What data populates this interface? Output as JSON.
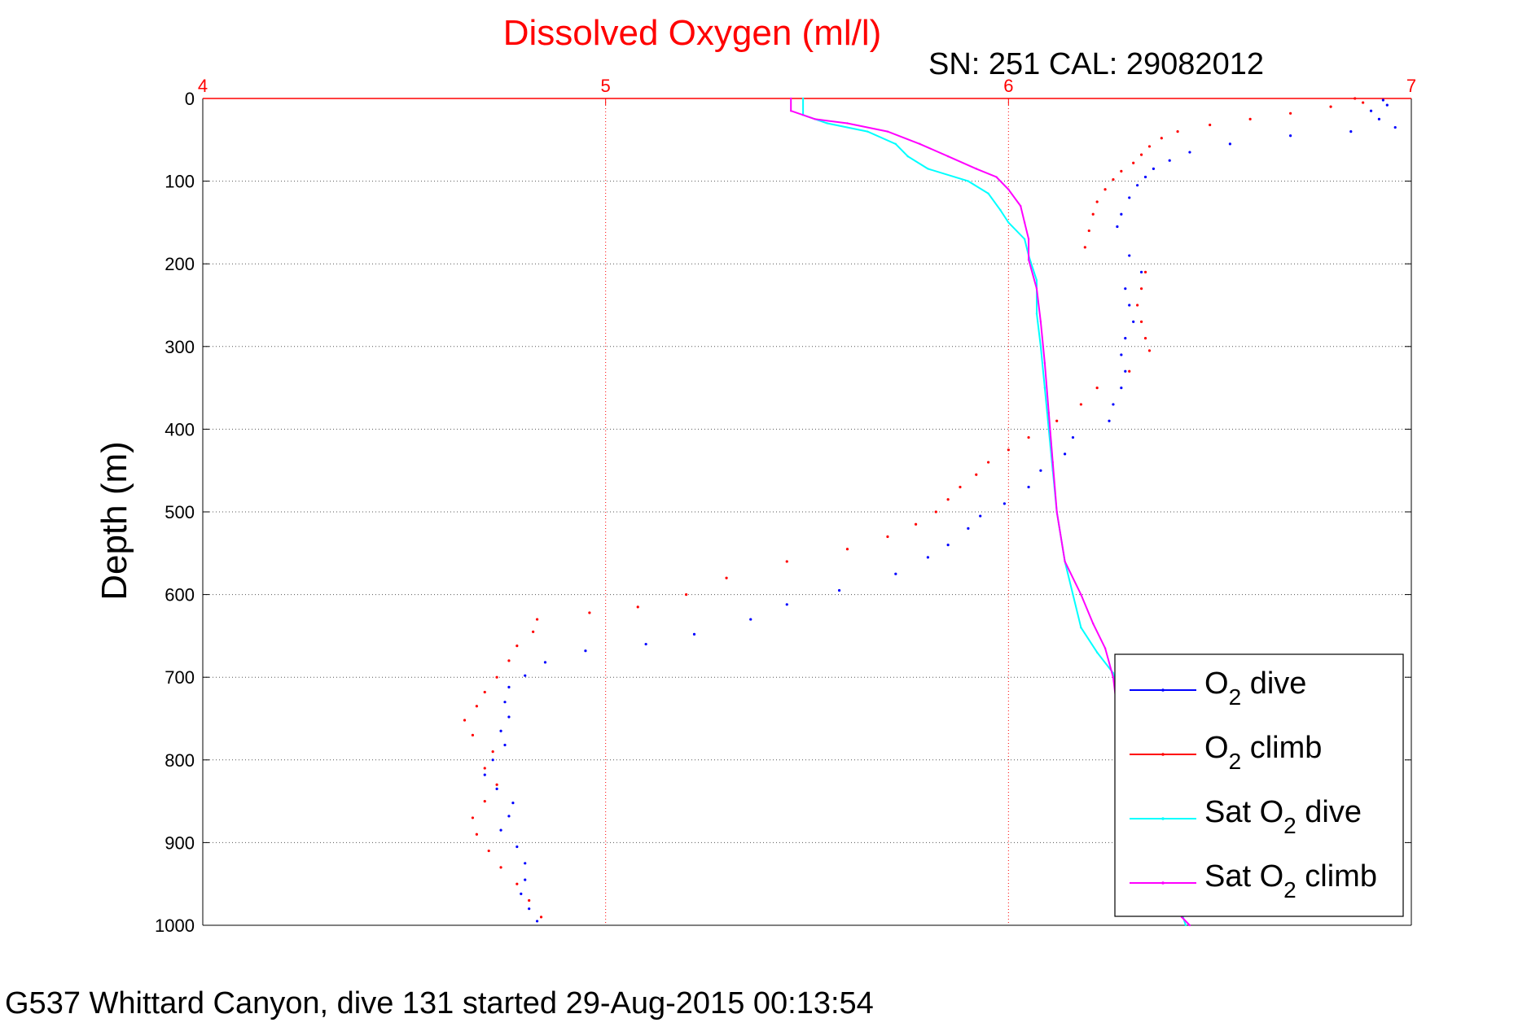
{
  "chart_data": {
    "type": "scatter",
    "title": "Dissolved Oxygen (ml/l)",
    "subtitle": "SN: 251  CAL: 29082012",
    "ylabel": "Depth (m)",
    "xlabel": "",
    "footer": "G537 Whittard Canyon, dive 131 started 29-Aug-2015 00:13:54",
    "xlim": [
      4,
      7
    ],
    "ylim": [
      0,
      1000
    ],
    "y_reversed": true,
    "x_axis_position": "top",
    "xticks": [
      "4",
      "5",
      "6",
      "7"
    ],
    "yticks": [
      "0",
      "100",
      "200",
      "300",
      "400",
      "500",
      "600",
      "700",
      "800",
      "900",
      "1000"
    ],
    "grid": true,
    "legend_position": "bottom-right",
    "colors": {
      "o2_dive": "#0000ff",
      "o2_climb": "#ff0000",
      "sat_dive": "#00ffff",
      "sat_climb": "#ff00ff",
      "x_axis": "#ff0000",
      "grid": "#555555"
    },
    "series": [
      {
        "name": "O2 dive",
        "style": "dots",
        "color": "#0000ff",
        "points": [
          [
            6.93,
            2
          ],
          [
            6.94,
            8
          ],
          [
            6.9,
            15
          ],
          [
            6.92,
            25
          ],
          [
            6.96,
            35
          ],
          [
            6.85,
            40
          ],
          [
            6.7,
            45
          ],
          [
            6.55,
            55
          ],
          [
            6.45,
            65
          ],
          [
            6.4,
            75
          ],
          [
            6.36,
            85
          ],
          [
            6.34,
            95
          ],
          [
            6.32,
            105
          ],
          [
            6.3,
            120
          ],
          [
            6.28,
            140
          ],
          [
            6.27,
            155
          ],
          [
            6.3,
            190
          ],
          [
            6.33,
            210
          ],
          [
            6.29,
            230
          ],
          [
            6.3,
            250
          ],
          [
            6.31,
            270
          ],
          [
            6.29,
            290
          ],
          [
            6.28,
            310
          ],
          [
            6.29,
            330
          ],
          [
            6.28,
            350
          ],
          [
            6.26,
            370
          ],
          [
            6.25,
            390
          ],
          [
            6.16,
            410
          ],
          [
            6.14,
            430
          ],
          [
            6.08,
            450
          ],
          [
            6.05,
            470
          ],
          [
            5.99,
            490
          ],
          [
            5.93,
            505
          ],
          [
            5.9,
            520
          ],
          [
            5.85,
            540
          ],
          [
            5.8,
            555
          ],
          [
            5.72,
            575
          ],
          [
            5.58,
            595
          ],
          [
            5.45,
            612
          ],
          [
            5.36,
            630
          ],
          [
            5.22,
            648
          ],
          [
            5.1,
            660
          ],
          [
            4.95,
            668
          ],
          [
            4.85,
            682
          ],
          [
            4.8,
            698
          ],
          [
            4.76,
            712
          ],
          [
            4.75,
            730
          ],
          [
            4.76,
            748
          ],
          [
            4.74,
            765
          ],
          [
            4.75,
            782
          ],
          [
            4.72,
            800
          ],
          [
            4.7,
            818
          ],
          [
            4.73,
            835
          ],
          [
            4.77,
            852
          ],
          [
            4.76,
            868
          ],
          [
            4.74,
            885
          ],
          [
            4.78,
            905
          ],
          [
            4.8,
            925
          ],
          [
            4.8,
            945
          ],
          [
            4.79,
            962
          ],
          [
            4.81,
            980
          ],
          [
            4.83,
            995
          ]
        ]
      },
      {
        "name": "O2 climb",
        "style": "dots",
        "color": "#ff0000",
        "points": [
          [
            6.86,
            0
          ],
          [
            6.88,
            5
          ],
          [
            6.8,
            10
          ],
          [
            6.7,
            18
          ],
          [
            6.6,
            25
          ],
          [
            6.5,
            32
          ],
          [
            6.42,
            40
          ],
          [
            6.38,
            48
          ],
          [
            6.35,
            58
          ],
          [
            6.33,
            68
          ],
          [
            6.31,
            78
          ],
          [
            6.28,
            88
          ],
          [
            6.26,
            98
          ],
          [
            6.24,
            110
          ],
          [
            6.22,
            125
          ],
          [
            6.21,
            140
          ],
          [
            6.2,
            160
          ],
          [
            6.19,
            180
          ],
          [
            6.34,
            210
          ],
          [
            6.33,
            230
          ],
          [
            6.32,
            250
          ],
          [
            6.33,
            270
          ],
          [
            6.34,
            290
          ],
          [
            6.35,
            305
          ],
          [
            6.3,
            330
          ],
          [
            6.22,
            350
          ],
          [
            6.18,
            370
          ],
          [
            6.12,
            390
          ],
          [
            6.05,
            410
          ],
          [
            6.0,
            425
          ],
          [
            5.95,
            440
          ],
          [
            5.92,
            455
          ],
          [
            5.88,
            470
          ],
          [
            5.85,
            485
          ],
          [
            5.82,
            500
          ],
          [
            5.77,
            515
          ],
          [
            5.7,
            530
          ],
          [
            5.6,
            545
          ],
          [
            5.45,
            560
          ],
          [
            5.3,
            580
          ],
          [
            5.2,
            600
          ],
          [
            5.08,
            615
          ],
          [
            4.96,
            622
          ],
          [
            4.83,
            630
          ],
          [
            4.82,
            645
          ],
          [
            4.78,
            662
          ],
          [
            4.76,
            680
          ],
          [
            4.73,
            700
          ],
          [
            4.7,
            718
          ],
          [
            4.68,
            735
          ],
          [
            4.65,
            752
          ],
          [
            4.67,
            770
          ],
          [
            4.72,
            790
          ],
          [
            4.7,
            810
          ],
          [
            4.73,
            830
          ],
          [
            4.7,
            850
          ],
          [
            4.67,
            870
          ],
          [
            4.68,
            890
          ],
          [
            4.71,
            910
          ],
          [
            4.74,
            930
          ],
          [
            4.78,
            950
          ],
          [
            4.81,
            970
          ],
          [
            4.84,
            990
          ]
        ]
      },
      {
        "name": "Sat O2 dive",
        "style": "line",
        "color": "#00ffff",
        "points": [
          [
            5.49,
            0
          ],
          [
            5.49,
            20
          ],
          [
            5.55,
            30
          ],
          [
            5.65,
            40
          ],
          [
            5.72,
            55
          ],
          [
            5.75,
            70
          ],
          [
            5.8,
            85
          ],
          [
            5.9,
            100
          ],
          [
            5.95,
            115
          ],
          [
            5.98,
            135
          ],
          [
            6.0,
            150
          ],
          [
            6.04,
            170
          ],
          [
            6.05,
            190
          ],
          [
            6.07,
            220
          ],
          [
            6.07,
            260
          ],
          [
            6.08,
            300
          ],
          [
            6.09,
            350
          ],
          [
            6.1,
            400
          ],
          [
            6.11,
            450
          ],
          [
            6.12,
            500
          ],
          [
            6.14,
            560
          ],
          [
            6.16,
            600
          ],
          [
            6.18,
            640
          ],
          [
            6.22,
            670
          ],
          [
            6.26,
            695
          ],
          [
            6.28,
            730
          ],
          [
            6.3,
            770
          ],
          [
            6.32,
            820
          ],
          [
            6.36,
            870
          ],
          [
            6.4,
            920
          ],
          [
            6.42,
            970
          ],
          [
            6.44,
            1000
          ]
        ]
      },
      {
        "name": "Sat O2 climb",
        "style": "line",
        "color": "#ff00ff",
        "points": [
          [
            5.46,
            0
          ],
          [
            5.46,
            15
          ],
          [
            5.52,
            25
          ],
          [
            5.6,
            30
          ],
          [
            5.7,
            40
          ],
          [
            5.78,
            55
          ],
          [
            5.85,
            70
          ],
          [
            5.92,
            85
          ],
          [
            5.97,
            95
          ],
          [
            6.0,
            110
          ],
          [
            6.03,
            130
          ],
          [
            6.04,
            150
          ],
          [
            6.05,
            170
          ],
          [
            6.05,
            195
          ],
          [
            6.07,
            230
          ],
          [
            6.08,
            270
          ],
          [
            6.09,
            320
          ],
          [
            6.1,
            380
          ],
          [
            6.11,
            440
          ],
          [
            6.12,
            500
          ],
          [
            6.14,
            560
          ],
          [
            6.18,
            600
          ],
          [
            6.21,
            635
          ],
          [
            6.24,
            665
          ],
          [
            6.26,
            700
          ],
          [
            6.27,
            740
          ],
          [
            6.29,
            790
          ],
          [
            6.33,
            840
          ],
          [
            6.37,
            890
          ],
          [
            6.4,
            940
          ],
          [
            6.43,
            990
          ],
          [
            6.45,
            1000
          ]
        ]
      }
    ],
    "legend": [
      {
        "label": "O",
        "sub": "2",
        "tail": " dive",
        "color": "#0000ff"
      },
      {
        "label": "O",
        "sub": "2",
        "tail": " climb",
        "color": "#ff0000"
      },
      {
        "label": "Sat O",
        "sub": "2",
        "tail": " dive",
        "color": "#00ffff"
      },
      {
        "label": "Sat O",
        "sub": "2",
        "tail": " climb",
        "color": "#ff00ff"
      }
    ]
  }
}
